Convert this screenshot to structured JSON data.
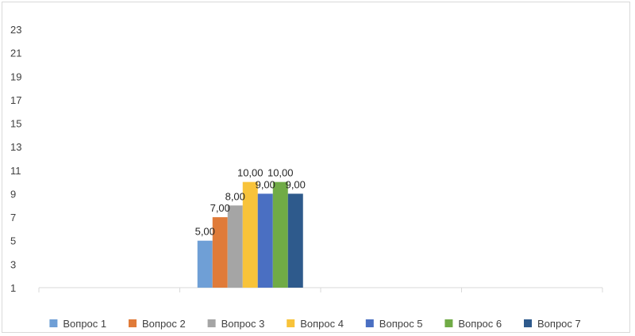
{
  "chart_data": {
    "type": "bar",
    "categories": [
      "",
      "",
      "",
      ""
    ],
    "series": [
      {
        "name": "Вопрос 1",
        "values": [
          null,
          5,
          null,
          null
        ],
        "labels": [
          null,
          "5,00",
          null,
          null
        ],
        "color": "#6f9fd6"
      },
      {
        "name": "Вопрос 2",
        "values": [
          null,
          7,
          null,
          null
        ],
        "labels": [
          null,
          "7,00",
          null,
          null
        ],
        "color": "#e07b39"
      },
      {
        "name": "Вопрос 3",
        "values": [
          null,
          8,
          null,
          null
        ],
        "labels": [
          null,
          "8,00",
          null,
          null
        ],
        "color": "#a5a5a5"
      },
      {
        "name": "Вопрос 4",
        "values": [
          null,
          10,
          null,
          null
        ],
        "labels": [
          null,
          "10,00",
          null,
          null
        ],
        "color": "#f8c33a"
      },
      {
        "name": "Вопрос 5",
        "values": [
          null,
          9,
          null,
          null
        ],
        "labels": [
          null,
          "9,00",
          null,
          null
        ],
        "color": "#4a6fc2"
      },
      {
        "name": "Вопрос 6",
        "values": [
          null,
          10,
          null,
          null
        ],
        "labels": [
          null,
          "10,00",
          null,
          null
        ],
        "color": "#70ab46"
      },
      {
        "name": "Вопрос 7",
        "values": [
          null,
          9,
          null,
          null
        ],
        "labels": [
          null,
          "9,00",
          null,
          null
        ],
        "color": "#2e5a8c"
      }
    ],
    "title": "",
    "xlabel": "",
    "ylabel": "",
    "ylim": [
      1,
      23
    ],
    "yticks": [
      "1",
      "3",
      "5",
      "7",
      "9",
      "11",
      "13",
      "15",
      "17",
      "19",
      "21",
      "23"
    ],
    "grid": false,
    "legend_position": "bottom"
  }
}
